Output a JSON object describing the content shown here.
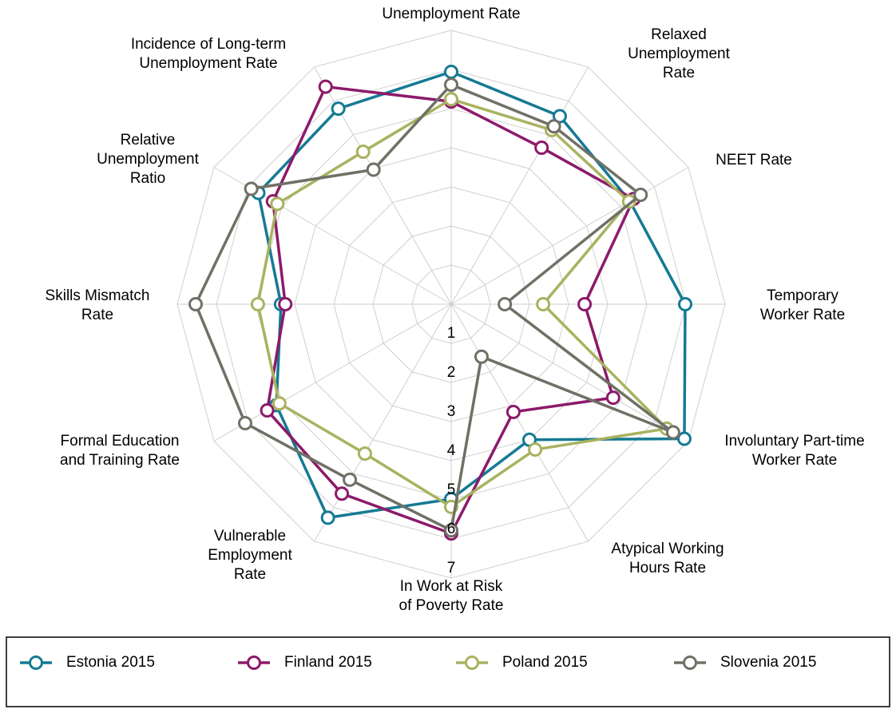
{
  "chart_data": {
    "type": "radar",
    "categories": [
      "Unemployment Rate",
      "Relaxed\nUnemployment\nRate",
      "NEET Rate",
      "Temporary\nWorker Rate",
      "Involuntary Part-time\nWorker Rate",
      "Atypical Working\nHours Rate",
      "In Work at Risk\nof Poverty Rate",
      "Vulnerable\nEmployment\nRate",
      "Formal Education\nand Training Rate",
      "Skills Mismatch\nRate",
      "Relative\nUnemployment\nRatio",
      "Incidence of Long-term\nUnemployment Rate"
    ],
    "rlim": [
      0,
      7
    ],
    "rticks": [
      1,
      2,
      3,
      4,
      5,
      6,
      7
    ],
    "grid": true,
    "series": [
      {
        "name": "Estonia 2015",
        "color": "#157a94",
        "values": [
          5.94,
          5.55,
          5.27,
          5.98,
          6.88,
          4.0,
          4.98,
          6.3,
          5.16,
          4.35,
          5.69,
          5.77
        ]
      },
      {
        "name": "Finland 2015",
        "color": "#8c1a6a",
        "values": [
          5.18,
          4.62,
          5.38,
          3.41,
          4.78,
          3.18,
          5.86,
          5.59,
          5.43,
          4.24,
          5.26,
          6.42
        ]
      },
      {
        "name": "Poland 2015",
        "color": "#a9b25f",
        "values": [
          5.24,
          5.14,
          5.25,
          2.35,
          6.36,
          4.29,
          5.18,
          4.41,
          5.07,
          4.94,
          5.13,
          4.5
        ]
      },
      {
        "name": "Slovenia 2015",
        "color": "#707066",
        "values": [
          5.61,
          5.25,
          5.59,
          1.37,
          6.55,
          1.55,
          5.78,
          5.18,
          6.08,
          6.53,
          5.9,
          3.97
        ]
      }
    ],
    "legend": "bottom"
  }
}
